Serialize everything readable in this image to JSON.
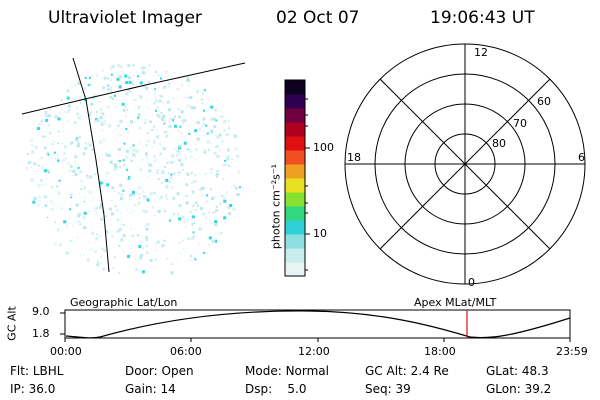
{
  "header": {
    "instrument": "Ultraviolet Imager",
    "date": "02 Oct 07",
    "time": "19:06:43 UT"
  },
  "colorbar": {
    "unit_label": "photon cm⁻²s⁻¹",
    "ticks": [
      "100",
      "10"
    ],
    "colors": [
      "#e8f4f4",
      "#c8ecec",
      "#8ee0e0",
      "#30d0d8",
      "#30d880",
      "#88e030",
      "#e8e020",
      "#f0a020",
      "#f05020",
      "#e01010",
      "#b00020",
      "#700040",
      "#300050",
      "#100020"
    ]
  },
  "polar_plot": {
    "mlt_labels": {
      "top": "12",
      "bottom": "0",
      "left": "18",
      "right": "6"
    },
    "lat_labels": [
      "60",
      "70",
      "80"
    ]
  },
  "image_panel": {
    "aurora_color": "#30d8e0"
  },
  "altitude_plot": {
    "ylabel": "GC Alt",
    "yticks": [
      "9.0",
      "1.8"
    ],
    "left_title": "Geographic Lat/Lon",
    "right_title": "Apex MLat/MLT",
    "xticks": [
      "00:00",
      "06:00",
      "12:00",
      "18:00",
      "23:59"
    ],
    "marker_color": "#e01010"
  },
  "status": {
    "flt_label": "Flt:",
    "flt_value": "LBHL",
    "ip_label": "IP:",
    "ip_value": "36.0",
    "door_label": "Door:",
    "door_value": "Open",
    "gain_label": "Gain:",
    "gain_value": "14",
    "mode_label": "Mode:",
    "mode_value": "Normal",
    "dsp_label": "Dsp:",
    "dsp_value": "5.0",
    "gcalt_label": "GC Alt:",
    "gcalt_value": "2.4 Re",
    "seq_label": "Seq:",
    "seq_value": "39",
    "glat_label": "GLat:",
    "glat_value": "48.3",
    "glon_label": "GLon:",
    "glon_value": "39.2"
  }
}
